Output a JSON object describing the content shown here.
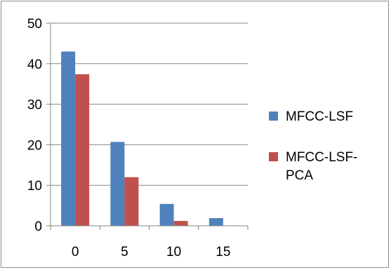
{
  "chart_data": {
    "type": "bar",
    "categories": [
      "0",
      "5",
      "10",
      "15"
    ],
    "series": [
      {
        "name": "MFCC-LSF",
        "values": [
          43,
          20.7,
          5.4,
          1.9
        ],
        "color": "#4f81bd"
      },
      {
        "name": "MFCC-LSF-PCA",
        "values": [
          37.4,
          12,
          1.2,
          0
        ],
        "color": "#c0504d"
      }
    ],
    "legend_lines": [
      [
        "MFCC-LSF"
      ],
      [
        "MFCC-LSF-",
        "PCA"
      ]
    ],
    "yticks": [
      "0",
      "10",
      "20",
      "30",
      "40",
      "50"
    ],
    "ylim": [
      0,
      50
    ],
    "grid": true,
    "legend_position": "right",
    "title": "",
    "xlabel": "",
    "ylabel": ""
  }
}
